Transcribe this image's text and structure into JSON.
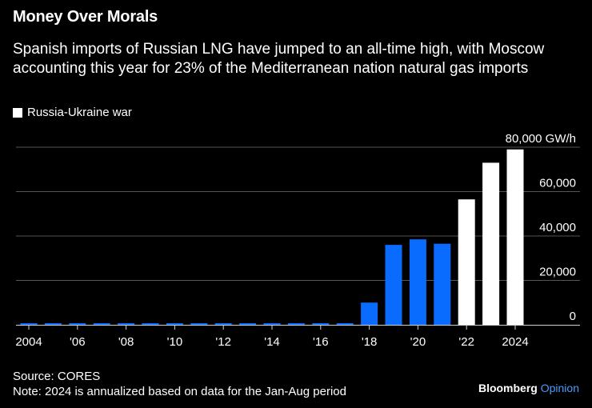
{
  "header": {
    "title": "Money Over Morals",
    "subtitle": "Spanish imports of Russian LNG have jumped to an all-time high, with Moscow accounting this year for 23% of the Mediterranean nation natural gas imports"
  },
  "legend": {
    "label": "Russia-Ukraine war",
    "color": "#ffffff"
  },
  "colors": {
    "pre_war": "#0a6cff",
    "war": "#ffffff",
    "background": "#000000",
    "grid": "#555555"
  },
  "chart_data": {
    "type": "bar",
    "title": "Money Over Morals",
    "ylabel": "GW/h",
    "ylim": [
      0,
      80000
    ],
    "yticks": [
      0,
      20000,
      40000,
      60000,
      80000
    ],
    "ytick_labels": [
      "0",
      "20,000",
      "40,000",
      "60,000",
      "80,000 GW/h"
    ],
    "categories": [
      "2004",
      "2005",
      "2006",
      "2007",
      "2008",
      "2009",
      "2010",
      "2011",
      "2012",
      "2013",
      "2014",
      "2015",
      "2016",
      "2017",
      "2018",
      "2019",
      "2020",
      "2021",
      "2022",
      "2023",
      "2024"
    ],
    "xtick_labels": [
      "2004",
      "",
      "'06",
      "",
      "'08",
      "",
      "'10",
      "",
      "'12",
      "",
      "'14",
      "",
      "'16",
      "",
      "'18",
      "",
      "'20",
      "",
      "'22",
      "",
      "2024"
    ],
    "values": [
      0,
      0,
      0,
      0,
      0,
      0,
      0,
      0,
      0,
      0,
      0,
      0,
      0,
      0,
      10000,
      36000,
      38500,
      36500,
      56500,
      73000,
      79000
    ],
    "war_flags": [
      false,
      false,
      false,
      false,
      false,
      false,
      false,
      false,
      false,
      false,
      false,
      false,
      false,
      false,
      false,
      false,
      false,
      false,
      true,
      true,
      true
    ],
    "legend": [
      "Russia-Ukraine war"
    ]
  },
  "footer": {
    "source": "Source: CORES",
    "note": "Note: 2024 is annualized based on data for the Jan-Aug period",
    "brand": "Bloomberg",
    "brand_suffix": "Opinion"
  }
}
